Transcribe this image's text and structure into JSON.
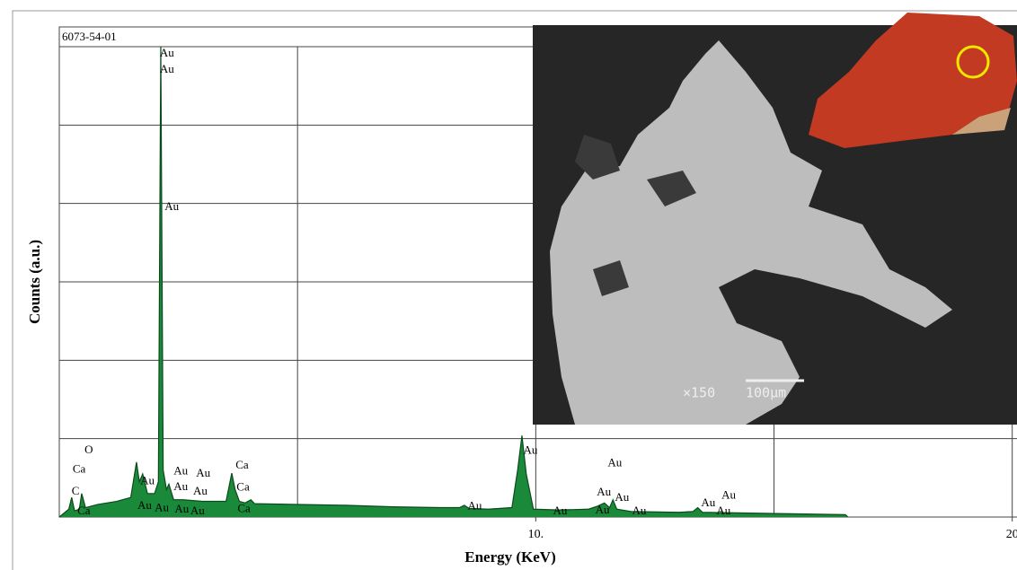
{
  "chart_data": {
    "type": "area",
    "sample_label": "6073-54-01",
    "x_label": "Energy (KeV)",
    "y_label": "Counts (a.u.)",
    "color": "#1a8a3a",
    "line_color": "#0b4a1c",
    "xlim": [
      0,
      20.1
    ],
    "ylim": [
      0,
      6
    ],
    "xticks": [
      {
        "value": 10,
        "label": "10."
      },
      20
    ],
    "xgrid": [
      5,
      10,
      15,
      20
    ],
    "ygrid": [
      1,
      2,
      3,
      4,
      5,
      6
    ],
    "x": [
      0,
      0.2,
      0.26,
      0.32,
      0.42,
      0.47,
      0.55,
      0.8,
      1.2,
      1.5,
      1.62,
      1.68,
      1.75,
      1.85,
      2.0,
      2.08,
      2.13,
      2.18,
      2.25,
      2.3,
      2.4,
      2.6,
      3.0,
      3.5,
      3.62,
      3.69,
      3.78,
      3.9,
      4.02,
      4.1,
      5,
      6,
      7,
      8,
      8.4,
      8.5,
      8.6,
      9,
      9.5,
      9.62,
      9.71,
      9.8,
      9.95,
      10.5,
      11.1,
      11.3,
      11.44,
      11.55,
      11.62,
      11.7,
      12,
      13,
      13.3,
      13.4,
      13.5,
      14.5,
      15.5,
      16.5,
      16.55
    ],
    "values": [
      0,
      0.1,
      0.25,
      0.08,
      0.1,
      0.3,
      0.12,
      0.16,
      0.2,
      0.25,
      0.7,
      0.45,
      0.55,
      0.3,
      0.3,
      0.45,
      6.0,
      0.6,
      0.35,
      0.42,
      0.22,
      0.22,
      0.2,
      0.2,
      0.56,
      0.35,
      0.2,
      0.18,
      0.22,
      0.17,
      0.16,
      0.15,
      0.13,
      0.12,
      0.12,
      0.15,
      0.11,
      0.1,
      0.12,
      0.6,
      1.04,
      0.55,
      0.1,
      0.09,
      0.1,
      0.14,
      0.18,
      0.12,
      0.22,
      0.1,
      0.07,
      0.06,
      0.07,
      0.12,
      0.06,
      0.05,
      0.04,
      0.03,
      0
    ],
    "annotations": [
      {
        "text": "Au",
        "x": 2.11,
        "y": 5.91
      },
      {
        "text": "Au",
        "x": 2.11,
        "y": 5.7
      },
      {
        "text": "Au",
        "x": 2.21,
        "y": 3.95
      },
      {
        "text": "O",
        "x": 0.53,
        "y": 0.85
      },
      {
        "text": "Ca",
        "x": 0.28,
        "y": 0.6
      },
      {
        "text": "C",
        "x": 0.26,
        "y": 0.32
      },
      {
        "text": "Ca",
        "x": 0.38,
        "y": 0.07
      },
      {
        "text": "Au",
        "x": 1.7,
        "y": 0.45
      },
      {
        "text": "Au",
        "x": 1.64,
        "y": 0.14
      },
      {
        "text": "Au",
        "x": 2.0,
        "y": 0.11
      },
      {
        "text": "Au",
        "x": 2.42,
        "y": 0.09
      },
      {
        "text": "Au",
        "x": 2.75,
        "y": 0.07
      },
      {
        "text": "Au",
        "x": 2.4,
        "y": 0.58
      },
      {
        "text": "Au",
        "x": 2.87,
        "y": 0.55
      },
      {
        "text": "Au",
        "x": 2.4,
        "y": 0.38
      },
      {
        "text": "Au",
        "x": 2.81,
        "y": 0.32
      },
      {
        "text": "Ca",
        "x": 3.7,
        "y": 0.65
      },
      {
        "text": "Ca",
        "x": 3.72,
        "y": 0.37
      },
      {
        "text": "Ca",
        "x": 3.74,
        "y": 0.1
      },
      {
        "text": "Au",
        "x": 9.74,
        "y": 0.84
      },
      {
        "text": "Au",
        "x": 8.57,
        "y": 0.13
      },
      {
        "text": "Au",
        "x": 10.36,
        "y": 0.07
      },
      {
        "text": "Au",
        "x": 11.51,
        "y": 0.68
      },
      {
        "text": "Au",
        "x": 11.28,
        "y": 0.31
      },
      {
        "text": "Au",
        "x": 11.66,
        "y": 0.24
      },
      {
        "text": "Au",
        "x": 11.25,
        "y": 0.08
      },
      {
        "text": "Au",
        "x": 12.02,
        "y": 0.07
      },
      {
        "text": "Au",
        "x": 13.47,
        "y": 0.17
      },
      {
        "text": "Au",
        "x": 13.9,
        "y": 0.27
      },
      {
        "text": "Au",
        "x": 13.79,
        "y": 0.07
      }
    ],
    "inset": {
      "magnification": "×150",
      "scale_bar": "100μm"
    }
  }
}
